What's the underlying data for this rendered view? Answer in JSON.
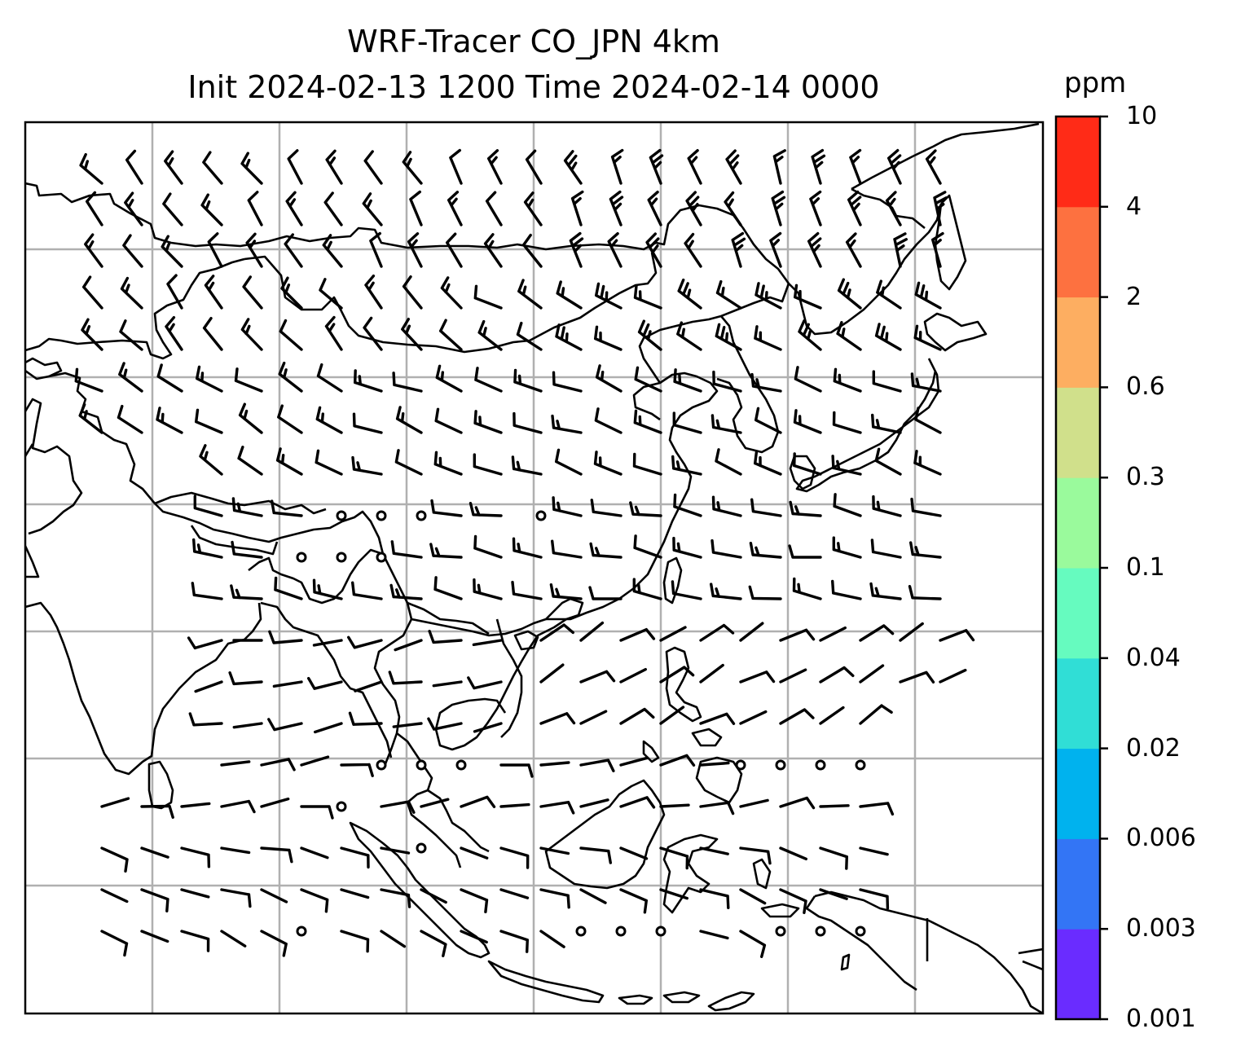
{
  "title": {
    "line1": "WRF-Tracer CO_JPN 4km",
    "line2": "Init 2024-02-13 1200 Time 2024-02-14 0000"
  },
  "colorbar": {
    "unit": "ppm",
    "levels": [
      "0.001",
      "0.003",
      "0.006",
      "0.02",
      "0.04",
      "0.1",
      "0.3",
      "0.6",
      "2",
      "4",
      "10"
    ],
    "colors": [
      "#6a2cff",
      "#3375f5",
      "#00b2ee",
      "#30ded6",
      "#66fbbf",
      "#9afa9c",
      "#d0e08b",
      "#fdae61",
      "#fd7140",
      "#ff2b17"
    ]
  },
  "map": {
    "region": "East and Southeast Asia",
    "coastline_color": "#000000",
    "gridline_color": "#b0b0b0",
    "wind_symbol": "barb",
    "calm_symbol": "circle"
  }
}
